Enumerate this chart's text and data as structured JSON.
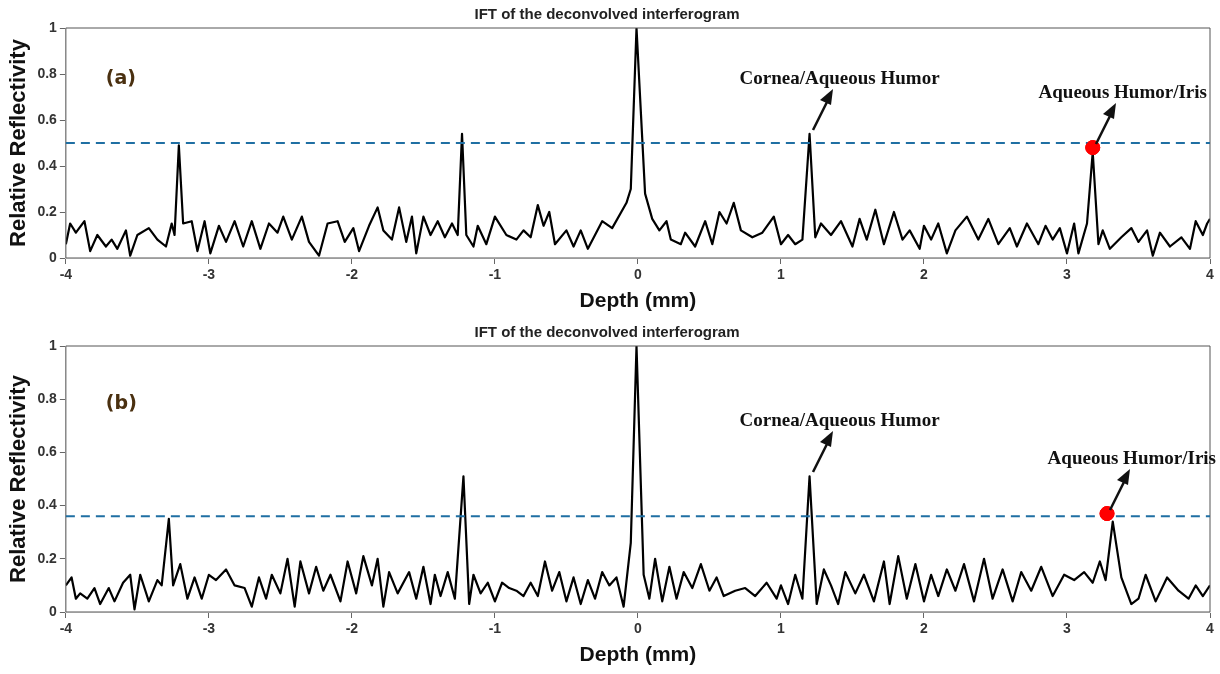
{
  "chart_data": [
    {
      "type": "line",
      "title": "IFT of the deconvolved interferogram",
      "xlabel": "Depth (mm)",
      "ylabel": "Relative Reflectivity",
      "xlim": [
        -4,
        4
      ],
      "xticks": [
        -4,
        -3,
        -2,
        -1,
        0,
        1,
        2,
        3,
        4
      ],
      "ylim": [
        0,
        1
      ],
      "yticks": [
        0,
        0.2,
        0.4,
        0.6,
        0.8,
        1
      ],
      "grid": false,
      "legend": false,
      "series": [
        {
          "type": "line",
          "color": "#000000",
          "x": [
            -4,
            -3.97,
            -3.93,
            -3.87,
            -3.83,
            -3.78,
            -3.72,
            -3.68,
            -3.64,
            -3.58,
            -3.55,
            -3.5,
            -3.42,
            -3.36,
            -3.3,
            -3.26,
            -3.24,
            -3.21,
            -3.18,
            -3.12,
            -3.08,
            -3.03,
            -2.99,
            -2.93,
            -2.88,
            -2.82,
            -2.76,
            -2.7,
            -2.64,
            -2.58,
            -2.52,
            -2.48,
            -2.42,
            -2.35,
            -2.3,
            -2.23,
            -2.17,
            -2.1,
            -2.05,
            -1.99,
            -1.95,
            -1.88,
            -1.82,
            -1.78,
            -1.72,
            -1.67,
            -1.62,
            -1.58,
            -1.55,
            -1.5,
            -1.45,
            -1.4,
            -1.35,
            -1.3,
            -1.26,
            -1.23,
            -1.2,
            -1.15,
            -1.12,
            -1.06,
            -1,
            -0.92,
            -0.85,
            -0.8,
            -0.75,
            -0.7,
            -0.66,
            -0.62,
            -0.58,
            -0.5,
            -0.45,
            -0.4,
            -0.35,
            -0.3,
            -0.25,
            -0.18,
            -0.08,
            -0.05,
            -0.01,
            0.05,
            0.1,
            0.15,
            0.2,
            0.23,
            0.3,
            0.33,
            0.4,
            0.47,
            0.52,
            0.57,
            0.62,
            0.67,
            0.72,
            0.8,
            0.87,
            0.95,
            1,
            1.05,
            1.1,
            1.15,
            1.2,
            1.24,
            1.28,
            1.35,
            1.42,
            1.5,
            1.55,
            1.6,
            1.66,
            1.72,
            1.79,
            1.85,
            1.9,
            1.97,
            2,
            2.05,
            2.1,
            2.16,
            2.22,
            2.3,
            2.38,
            2.45,
            2.52,
            2.6,
            2.65,
            2.72,
            2.8,
            2.85,
            2.9,
            2.95,
            3,
            3.05,
            3.08,
            3.14,
            3.18,
            3.22,
            3.25,
            3.3,
            3.38,
            3.45,
            3.5,
            3.56,
            3.6,
            3.65,
            3.72,
            3.8,
            3.86,
            3.9,
            3.95,
            3.98,
            4
          ],
          "values": [
            0.06,
            0.15,
            0.11,
            0.16,
            0.03,
            0.1,
            0.05,
            0.08,
            0.04,
            0.12,
            0.01,
            0.1,
            0.13,
            0.08,
            0.05,
            0.15,
            0.1,
            0.49,
            0.15,
            0.16,
            0.03,
            0.16,
            0.02,
            0.14,
            0.07,
            0.16,
            0.05,
            0.16,
            0.04,
            0.15,
            0.11,
            0.18,
            0.08,
            0.18,
            0.07,
            0.01,
            0.15,
            0.16,
            0.07,
            0.13,
            0.03,
            0.14,
            0.22,
            0.12,
            0.08,
            0.22,
            0.07,
            0.18,
            0.02,
            0.18,
            0.1,
            0.16,
            0.09,
            0.15,
            0.1,
            0.54,
            0.1,
            0.05,
            0.14,
            0.06,
            0.18,
            0.1,
            0.08,
            0.12,
            0.09,
            0.23,
            0.14,
            0.2,
            0.06,
            0.12,
            0.05,
            0.12,
            0.04,
            0.1,
            0.16,
            0.13,
            0.24,
            0.3,
            1,
            0.28,
            0.17,
            0.12,
            0.16,
            0.08,
            0.06,
            0.11,
            0.05,
            0.16,
            0.06,
            0.2,
            0.15,
            0.24,
            0.12,
            0.09,
            0.11,
            0.18,
            0.06,
            0.1,
            0.06,
            0.08,
            0.54,
            0.09,
            0.15,
            0.1,
            0.16,
            0.05,
            0.17,
            0.08,
            0.21,
            0.06,
            0.2,
            0.08,
            0.12,
            0.04,
            0.14,
            0.08,
            0.15,
            0.02,
            0.12,
            0.18,
            0.08,
            0.17,
            0.06,
            0.13,
            0.05,
            0.15,
            0.06,
            0.14,
            0.08,
            0.13,
            0.02,
            0.15,
            0.02,
            0.15,
            0.46,
            0.06,
            0.12,
            0.04,
            0.09,
            0.13,
            0.07,
            0.12,
            0.01,
            0.11,
            0.05,
            0.09,
            0.04,
            0.16,
            0.1,
            0.15,
            0.17
          ]
        },
        {
          "type": "scatter",
          "color": "#ff0000",
          "marker": "circle",
          "x": [
            3.18
          ],
          "values": [
            0.48
          ]
        }
      ],
      "ref_lines": [
        {
          "axis": "y",
          "value": 0.5,
          "color": "#1f6fa3",
          "line_style": "dashed"
        }
      ],
      "annotations": [
        "(a)",
        {
          "text": "Cornea/Aqueous Humor",
          "x": 1.2,
          "y": 0.54
        },
        {
          "text": "Aqueous Humor/Iris",
          "x": 3.18,
          "y": 0.48
        }
      ]
    },
    {
      "type": "line",
      "title": "IFT of the deconvolved interferogram",
      "xlabel": "Depth (mm)",
      "ylabel": "Relative Reflectivity",
      "xlim": [
        -4,
        4
      ],
      "xticks": [
        -4,
        -3,
        -2,
        -1,
        0,
        1,
        2,
        3,
        4
      ],
      "ylim": [
        0,
        1
      ],
      "yticks": [
        0,
        0.2,
        0.4,
        0.6,
        0.8,
        1
      ],
      "grid": false,
      "legend": false,
      "series": [
        {
          "type": "line",
          "color": "#000000",
          "x": [
            -4,
            -3.96,
            -3.93,
            -3.9,
            -3.85,
            -3.8,
            -3.76,
            -3.7,
            -3.66,
            -3.6,
            -3.55,
            -3.52,
            -3.48,
            -3.42,
            -3.36,
            -3.33,
            -3.28,
            -3.25,
            -3.2,
            -3.15,
            -3.1,
            -3.05,
            -3,
            -2.95,
            -2.88,
            -2.82,
            -2.75,
            -2.7,
            -2.65,
            -2.6,
            -2.56,
            -2.5,
            -2.45,
            -2.4,
            -2.36,
            -2.3,
            -2.25,
            -2.2,
            -2.15,
            -2.08,
            -2.03,
            -1.97,
            -1.92,
            -1.86,
            -1.82,
            -1.78,
            -1.74,
            -1.68,
            -1.6,
            -1.55,
            -1.5,
            -1.45,
            -1.42,
            -1.38,
            -1.33,
            -1.28,
            -1.22,
            -1.18,
            -1.15,
            -1.1,
            -1.05,
            -1,
            -0.95,
            -0.9,
            -0.85,
            -0.8,
            -0.75,
            -0.7,
            -0.65,
            -0.6,
            -0.55,
            -0.5,
            -0.45,
            -0.4,
            -0.35,
            -0.3,
            -0.25,
            -0.2,
            -0.15,
            -0.1,
            -0.05,
            -0.01,
            0.04,
            0.08,
            0.12,
            0.17,
            0.22,
            0.27,
            0.32,
            0.38,
            0.44,
            0.5,
            0.55,
            0.6,
            0.68,
            0.75,
            0.82,
            0.9,
            0.97,
            1,
            1.05,
            1.1,
            1.15,
            1.2,
            1.25,
            1.3,
            1.35,
            1.4,
            1.45,
            1.52,
            1.58,
            1.65,
            1.72,
            1.76,
            1.82,
            1.88,
            1.94,
            2,
            2.05,
            2.1,
            2.16,
            2.22,
            2.28,
            2.35,
            2.42,
            2.48,
            2.55,
            2.62,
            2.68,
            2.75,
            2.82,
            2.9,
            2.98,
            3.05,
            3.12,
            3.18,
            3.23,
            3.27,
            3.32,
            3.38,
            3.45,
            3.5,
            3.55,
            3.62,
            3.7,
            3.78,
            3.85,
            3.9,
            3.95,
            4
          ],
          "values": [
            0.1,
            0.13,
            0.05,
            0.07,
            0.05,
            0.09,
            0.03,
            0.09,
            0.04,
            0.11,
            0.14,
            0.01,
            0.14,
            0.04,
            0.12,
            0.1,
            0.35,
            0.1,
            0.18,
            0.05,
            0.13,
            0.05,
            0.14,
            0.12,
            0.16,
            0.1,
            0.09,
            0.02,
            0.13,
            0.05,
            0.14,
            0.07,
            0.2,
            0.02,
            0.19,
            0.07,
            0.17,
            0.08,
            0.14,
            0.04,
            0.19,
            0.07,
            0.21,
            0.1,
            0.2,
            0.02,
            0.15,
            0.07,
            0.15,
            0.05,
            0.17,
            0.03,
            0.14,
            0.06,
            0.15,
            0.05,
            0.51,
            0.03,
            0.14,
            0.07,
            0.11,
            0.04,
            0.11,
            0.09,
            0.08,
            0.06,
            0.11,
            0.06,
            0.19,
            0.08,
            0.15,
            0.04,
            0.13,
            0.03,
            0.12,
            0.05,
            0.15,
            0.1,
            0.13,
            0.02,
            0.26,
            1,
            0.14,
            0.05,
            0.2,
            0.04,
            0.17,
            0.05,
            0.15,
            0.09,
            0.18,
            0.08,
            0.13,
            0.06,
            0.08,
            0.09,
            0.06,
            0.11,
            0.05,
            0.1,
            0.03,
            0.14,
            0.05,
            0.51,
            0.03,
            0.16,
            0.1,
            0.03,
            0.15,
            0.07,
            0.14,
            0.04,
            0.19,
            0.03,
            0.21,
            0.05,
            0.18,
            0.04,
            0.14,
            0.06,
            0.16,
            0.08,
            0.18,
            0.04,
            0.2,
            0.05,
            0.16,
            0.04,
            0.15,
            0.08,
            0.17,
            0.06,
            0.14,
            0.12,
            0.15,
            0.11,
            0.19,
            0.12,
            0.34,
            0.13,
            0.03,
            0.05,
            0.14,
            0.04,
            0.13,
            0.08,
            0.05,
            0.1,
            0.06,
            0.1
          ]
        },
        {
          "type": "scatter",
          "color": "#ff0000",
          "marker": "circle",
          "x": [
            3.28
          ],
          "values": [
            0.37
          ]
        }
      ],
      "ref_lines": [
        {
          "axis": "y",
          "value": 0.36,
          "color": "#1f6fa3",
          "line_style": "dashed"
        }
      ],
      "annotations": [
        "(b)",
        {
          "text": "Cornea/Aqueous Humor",
          "x": 1.2,
          "y": 0.51
        },
        {
          "text": "Aqueous Humor/Iris",
          "x": 3.28,
          "y": 0.37
        }
      ]
    }
  ]
}
